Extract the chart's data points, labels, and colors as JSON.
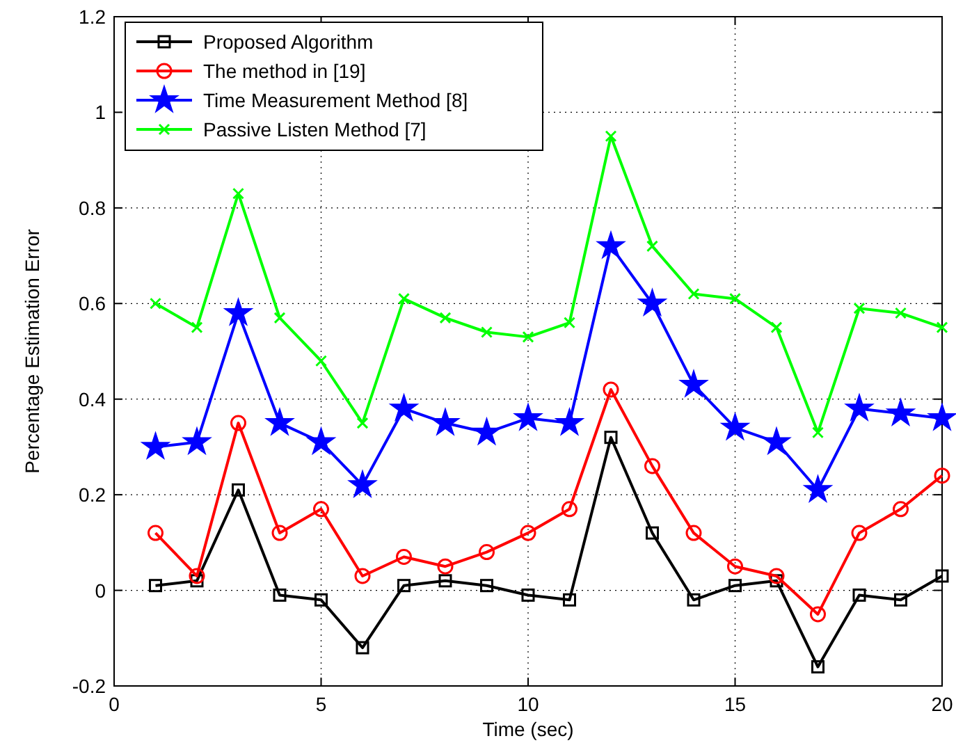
{
  "chart_data": {
    "type": "line",
    "xlabel": "Time (sec)",
    "ylabel": "Percentage Estimation Error",
    "x": [
      1,
      2,
      3,
      4,
      5,
      6,
      7,
      8,
      9,
      10,
      11,
      12,
      13,
      14,
      15,
      16,
      17,
      18,
      19,
      20
    ],
    "xlim": [
      0,
      20
    ],
    "xticks": [
      0,
      5,
      10,
      15,
      20
    ],
    "ylim": [
      -0.2,
      1.2
    ],
    "yticks": [
      -0.2,
      0,
      0.2,
      0.4,
      0.6,
      0.8,
      1,
      1.2
    ],
    "grid": true,
    "legend": "top left",
    "line_style": "solid",
    "series": [
      {
        "name": "Proposed Algorithm",
        "color": "#000000",
        "marker": "square",
        "values": [
          0.01,
          0.02,
          0.21,
          -0.01,
          -0.02,
          -0.12,
          0.01,
          0.02,
          0.01,
          -0.01,
          -0.02,
          0.32,
          0.12,
          -0.02,
          0.01,
          0.02,
          -0.16,
          -0.01,
          -0.02,
          0.03
        ]
      },
      {
        "name": "The method in [19]",
        "color": "#ff0000",
        "marker": "circle",
        "values": [
          0.12,
          0.03,
          0.35,
          0.12,
          0.17,
          0.03,
          0.07,
          0.05,
          0.08,
          0.12,
          0.17,
          0.42,
          0.26,
          0.12,
          0.05,
          0.03,
          -0.05,
          0.12,
          0.17,
          0.24
        ]
      },
      {
        "name": "Time Measurement Method [8]",
        "color": "#0000ff",
        "marker": "star",
        "values": [
          0.3,
          0.31,
          0.58,
          0.35,
          0.31,
          0.22,
          0.38,
          0.35,
          0.33,
          0.36,
          0.35,
          0.72,
          0.6,
          0.43,
          0.34,
          0.31,
          0.21,
          0.38,
          0.37,
          0.36
        ]
      },
      {
        "name": "Passive Listen Method [7]",
        "color": "#00ff00",
        "marker": "cross",
        "values": [
          0.6,
          0.55,
          0.83,
          0.57,
          0.48,
          0.35,
          0.61,
          0.57,
          0.54,
          0.53,
          0.56,
          0.95,
          0.72,
          0.62,
          0.61,
          0.55,
          0.33,
          0.59,
          0.58,
          0.55
        ]
      }
    ]
  }
}
